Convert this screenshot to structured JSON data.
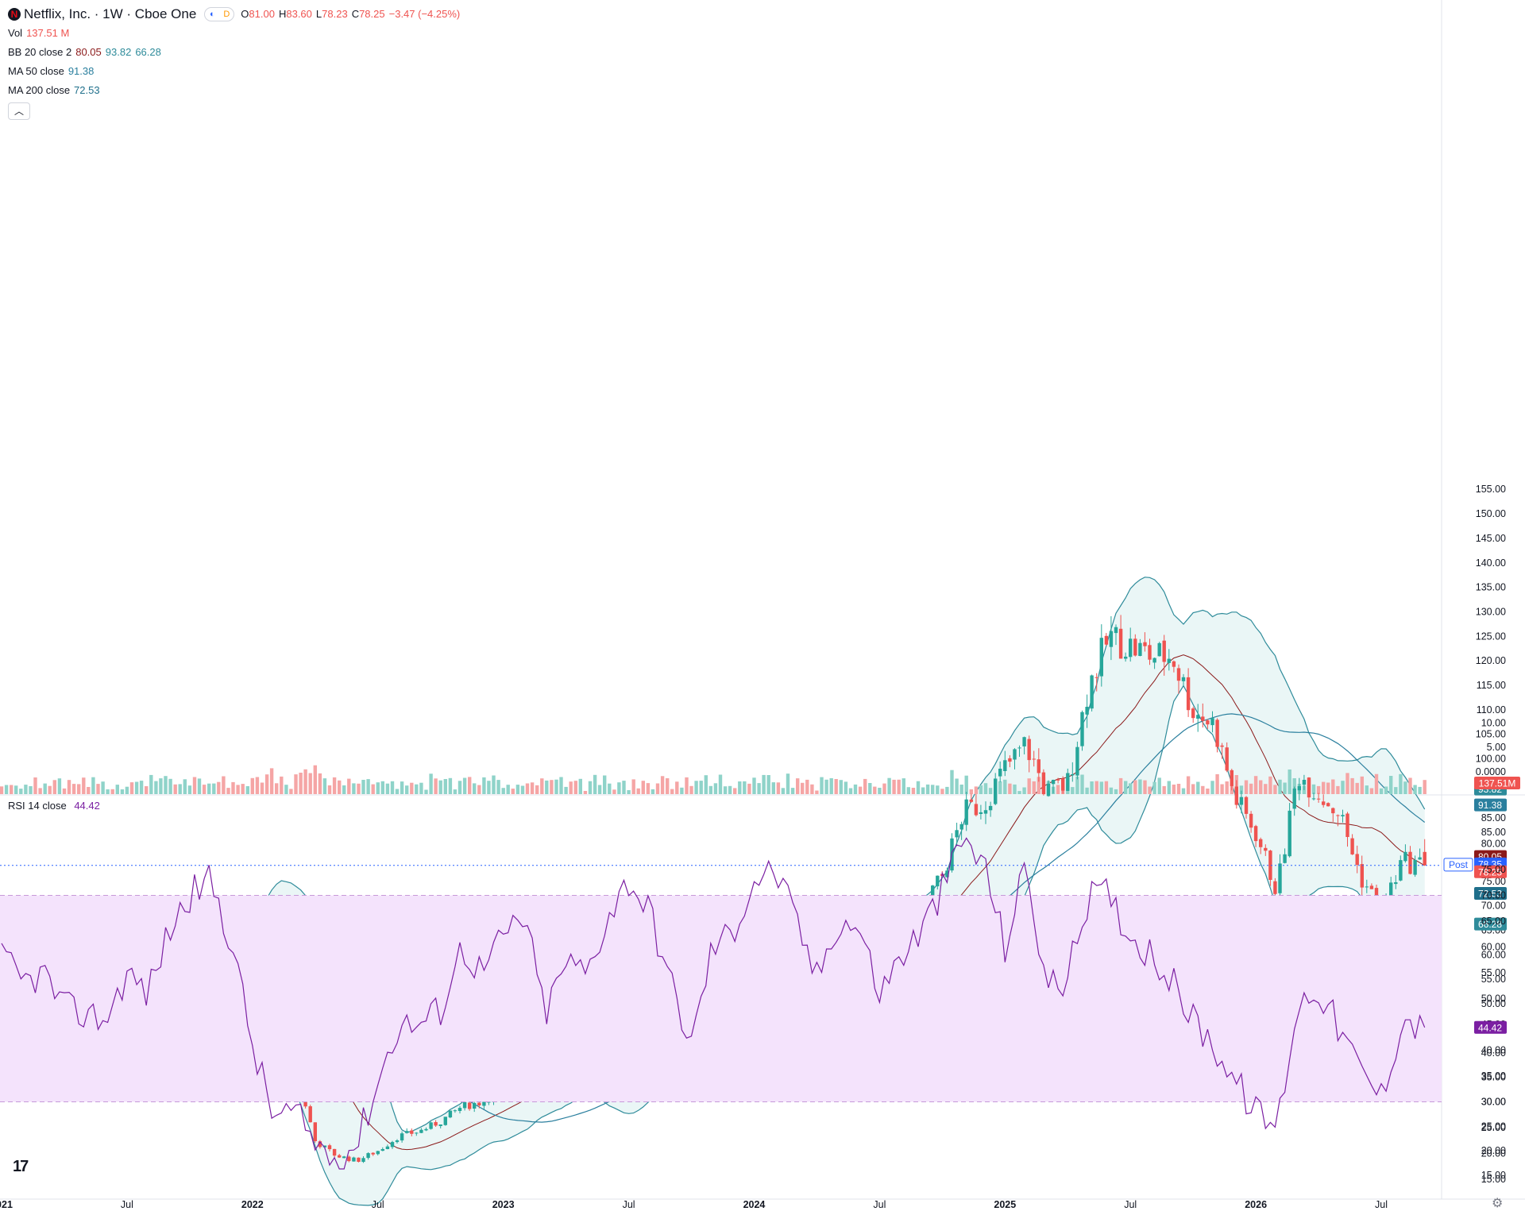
{
  "header": {
    "title": "Netflix, Inc. · 1W · Cboe One",
    "ohlc": [
      {
        "key": "O",
        "value": "81.00"
      },
      {
        "key": "H",
        "value": "83.60"
      },
      {
        "key": "L",
        "value": "78.23"
      },
      {
        "key": "C",
        "value": "78.25"
      }
    ],
    "change": "−3.47 (−4.25%)",
    "pill_left": "D",
    "pill_right": "D"
  },
  "indicators": {
    "vol": {
      "label": "Vol",
      "value": "137.51 M"
    },
    "bb": {
      "label": "BB 20 close 2",
      "basis": "80.05",
      "upper": "93.82",
      "lower": "66.28"
    },
    "ma50": {
      "label": "MA 50 close",
      "value": "91.38"
    },
    "ma200": {
      "label": "MA 200 close",
      "value": "72.53"
    },
    "rsi": {
      "label": "RSI 14 close",
      "value": "44.42"
    }
  },
  "colors": {
    "up": "#26a69a",
    "down": "#ef5350",
    "up_vol": "#8fd3c9",
    "down_vol": "#f5a5a5",
    "bb_line": "#2e8b9a",
    "bb_fill": "#eaf6f6",
    "basis": "#8b1a1a",
    "ma50": "#2a7f9e",
    "ma200": "#1f6f8b",
    "rsi": "#7b1fa2",
    "rsi_band": "#f4e3fc",
    "price_line": "#2962ff"
  },
  "chart_data": [
    {
      "type": "candlestick",
      "interval": "1W",
      "xlim": [
        "2021-01",
        "2026-10"
      ],
      "ylim": [
        15,
        155
      ],
      "price_axis_ticks": [
        "15.00",
        "20.00",
        "25.00",
        "30.00",
        "35.00",
        "40.00",
        "45.00",
        "50.00",
        "55.00",
        "60.00",
        "65.00",
        "70.00",
        "75.00",
        "80.00",
        "85.00",
        "90.00",
        "95.00",
        "100.00",
        "105.00",
        "110.00",
        "115.00",
        "120.00",
        "125.00",
        "130.00",
        "135.00",
        "140.00",
        "145.00",
        "150.00",
        "155.00"
      ],
      "volume_axis_ticks": [
        "0.0000",
        "5.00",
        "10.00"
      ],
      "time_axis_ticks": [
        {
          "label": "2021",
          "date": "2021-01"
        },
        {
          "label": "Jul",
          "date": "2021-07"
        },
        {
          "label": "2022",
          "date": "2022-01"
        },
        {
          "label": "Jul",
          "date": "2022-07"
        },
        {
          "label": "2023",
          "date": "2023-01"
        },
        {
          "label": "Jul",
          "date": "2023-07"
        },
        {
          "label": "2024",
          "date": "2024-01"
        },
        {
          "label": "Jul",
          "date": "2024-07"
        },
        {
          "label": "2025",
          "date": "2025-01"
        },
        {
          "label": "Jul",
          "date": "2025-07"
        },
        {
          "label": "2026",
          "date": "2026-01"
        },
        {
          "label": "Jul",
          "date": "2026-07"
        }
      ],
      "close_anchors": [
        [
          "2021-01",
          52
        ],
        [
          "2021-02",
          54
        ],
        [
          "2021-03",
          51
        ],
        [
          "2021-04",
          52
        ],
        [
          "2021-05",
          49
        ],
        [
          "2021-06",
          50
        ],
        [
          "2021-07",
          52
        ],
        [
          "2021-08",
          51
        ],
        [
          "2021-09",
          57
        ],
        [
          "2021-10",
          63
        ],
        [
          "2021-11",
          68
        ],
        [
          "2021-12",
          61
        ],
        [
          "2022-01",
          56
        ],
        [
          "2022-02",
          40
        ],
        [
          "2022-03",
          38
        ],
        [
          "2022-04",
          22
        ],
        [
          "2022-05",
          19
        ],
        [
          "2022-06",
          18
        ],
        [
          "2022-07",
          20
        ],
        [
          "2022-08",
          23
        ],
        [
          "2022-09",
          24
        ],
        [
          "2022-10",
          26
        ],
        [
          "2022-11",
          29
        ],
        [
          "2022-12",
          30
        ],
        [
          "2023-01",
          33
        ],
        [
          "2023-02",
          36
        ],
        [
          "2023-03",
          32
        ],
        [
          "2023-04",
          33
        ],
        [
          "2023-05",
          35
        ],
        [
          "2023-06",
          43
        ],
        [
          "2023-07",
          45
        ],
        [
          "2023-08",
          43
        ],
        [
          "2023-09",
          39
        ],
        [
          "2023-10",
          36
        ],
        [
          "2023-11",
          45
        ],
        [
          "2023-12",
          48
        ],
        [
          "2024-01",
          50
        ],
        [
          "2024-02",
          58
        ],
        [
          "2024-03",
          61
        ],
        [
          "2024-04",
          57
        ],
        [
          "2024-05",
          63
        ],
        [
          "2024-06",
          66
        ],
        [
          "2024-07",
          66
        ],
        [
          "2024-08",
          66
        ],
        [
          "2024-09",
          70
        ],
        [
          "2024-10",
          76
        ],
        [
          "2024-11",
          89
        ],
        [
          "2024-12",
          91
        ],
        [
          "2025-01",
          98
        ],
        [
          "2025-02",
          103
        ],
        [
          "2025-03",
          93
        ],
        [
          "2025-04",
          95
        ],
        [
          "2025-05",
          115
        ],
        [
          "2025-06",
          125
        ],
        [
          "2025-07",
          123
        ],
        [
          "2025-08",
          121
        ],
        [
          "2025-09",
          121
        ],
        [
          "2025-10",
          110
        ],
        [
          "2025-11",
          107
        ],
        [
          "2025-12",
          92
        ],
        [
          "2026-01",
          85
        ],
        [
          "2026-02",
          73
        ],
        [
          "2026-03",
          97
        ],
        [
          "2026-04",
          93
        ],
        [
          "2026-05",
          89
        ],
        [
          "2026-06",
          76
        ],
        [
          "2026-07",
          69
        ],
        [
          "2026-08",
          79
        ],
        [
          "2026-09",
          78.25
        ]
      ],
      "last": {
        "open": 81.0,
        "high": 83.6,
        "low": 78.23,
        "close": 78.25,
        "post": "78.35",
        "volume": "137.51M"
      }
    },
    {
      "type": "line",
      "name": "RSI 14 close",
      "ylim": [
        15,
        85
      ],
      "axis_ticks": [
        "15.00",
        "20.00",
        "25.00",
        "30.00",
        "35.00",
        "40.00",
        "45.00",
        "50.00",
        "55.00",
        "60.00",
        "65.00",
        "70.00",
        "75.00",
        "80.00",
        "85.00"
      ],
      "bands": [
        30,
        70
      ],
      "anchors": [
        [
          "2021-01",
          58
        ],
        [
          "2021-02",
          53
        ],
        [
          "2021-03",
          55
        ],
        [
          "2021-04",
          48
        ],
        [
          "2021-05",
          47
        ],
        [
          "2021-06",
          46
        ],
        [
          "2021-07",
          55
        ],
        [
          "2021-08",
          51
        ],
        [
          "2021-09",
          63
        ],
        [
          "2021-10",
          70
        ],
        [
          "2021-11",
          73
        ],
        [
          "2021-12",
          61
        ],
        [
          "2022-01",
          41
        ],
        [
          "2022-02",
          27
        ],
        [
          "2022-03",
          28
        ],
        [
          "2022-04",
          22
        ],
        [
          "2022-05",
          19
        ],
        [
          "2022-06",
          22
        ],
        [
          "2022-07",
          34
        ],
        [
          "2022-08",
          45
        ],
        [
          "2022-09",
          45
        ],
        [
          "2022-10",
          48
        ],
        [
          "2022-11",
          60
        ],
        [
          "2022-12",
          55
        ],
        [
          "2023-01",
          62
        ],
        [
          "2023-02",
          66
        ],
        [
          "2023-03",
          47
        ],
        [
          "2023-04",
          57
        ],
        [
          "2023-05",
          55
        ],
        [
          "2023-06",
          66
        ],
        [
          "2023-07",
          73
        ],
        [
          "2023-08",
          67
        ],
        [
          "2023-09",
          53
        ],
        [
          "2023-10",
          41
        ],
        [
          "2023-11",
          60
        ],
        [
          "2023-12",
          63
        ],
        [
          "2024-01",
          73
        ],
        [
          "2024-02",
          75
        ],
        [
          "2024-03",
          65
        ],
        [
          "2024-04",
          54
        ],
        [
          "2024-05",
          65
        ],
        [
          "2024-06",
          64
        ],
        [
          "2024-07",
          51
        ],
        [
          "2024-08",
          58
        ],
        [
          "2024-09",
          63
        ],
        [
          "2024-10",
          71
        ],
        [
          "2024-11",
          81
        ],
        [
          "2024-12",
          76
        ],
        [
          "2025-01",
          60
        ],
        [
          "2025-02",
          76
        ],
        [
          "2025-03",
          52
        ],
        [
          "2025-04",
          54
        ],
        [
          "2025-05",
          70
        ],
        [
          "2025-06",
          70
        ],
        [
          "2025-07",
          62
        ],
        [
          "2025-08",
          59
        ],
        [
          "2025-09",
          53
        ],
        [
          "2025-10",
          46
        ],
        [
          "2025-11",
          41
        ],
        [
          "2025-12",
          34
        ],
        [
          "2026-01",
          28
        ],
        [
          "2026-02",
          25
        ],
        [
          "2026-03",
          49
        ],
        [
          "2026-04",
          52
        ],
        [
          "2026-05",
          44
        ],
        [
          "2026-06",
          36
        ],
        [
          "2026-07",
          31
        ],
        [
          "2026-08",
          46
        ],
        [
          "2026-09",
          44.42
        ]
      ]
    }
  ]
}
